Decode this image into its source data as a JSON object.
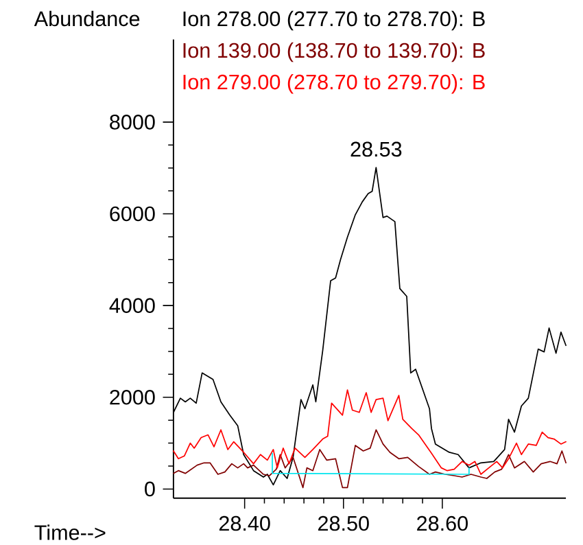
{
  "chart_data": {
    "type": "line",
    "xlabel": "Time-->",
    "ylabel": "Abundance",
    "xlim": [
      28.328,
      28.725
    ],
    "ylim": [
      -200,
      9800
    ],
    "xticks": [
      {
        "value": 28.4,
        "label": "28.40"
      },
      {
        "value": 28.5,
        "label": "28.50"
      },
      {
        "value": 28.6,
        "label": "28.60"
      }
    ],
    "yticks": [
      0,
      2000,
      4000,
      6000,
      8000
    ],
    "legend": "top",
    "grid": false,
    "marker": "none",
    "line_style": "solid",
    "annotations": [
      {
        "text": "28.53",
        "x": 28.533,
        "y": 7010
      }
    ],
    "series": [
      {
        "name": "Ion 278.00 (277.70 to 278.70): B",
        "color": "#000000",
        "x": [
          28.328,
          28.335,
          28.34,
          28.345,
          28.351,
          28.357,
          28.368,
          28.376,
          28.385,
          28.393,
          28.399,
          28.409,
          28.419,
          28.423,
          28.429,
          28.436,
          28.443,
          28.449,
          28.457,
          28.461,
          28.469,
          28.472,
          28.479,
          28.487,
          28.492,
          28.497,
          28.504,
          28.512,
          28.519,
          28.525,
          28.529,
          28.533,
          28.54,
          28.544,
          28.552,
          28.557,
          28.564,
          28.568,
          28.573,
          28.587,
          28.589,
          28.593,
          28.607,
          28.616,
          28.627,
          28.639,
          28.652,
          28.663,
          28.667,
          28.673,
          28.68,
          28.687,
          28.697,
          28.703,
          28.708,
          28.715,
          28.72,
          28.725
        ],
        "values": [
          1670,
          1980,
          1900,
          1980,
          1870,
          2530,
          2390,
          1900,
          1610,
          1380,
          750,
          400,
          260,
          320,
          90,
          400,
          230,
          690,
          1950,
          1750,
          2270,
          1900,
          3020,
          4540,
          4600,
          5000,
          5490,
          5980,
          6260,
          6440,
          6490,
          7010,
          5920,
          5950,
          5830,
          4370,
          4200,
          2530,
          2610,
          1750,
          1320,
          980,
          800,
          750,
          460,
          570,
          600,
          860,
          1520,
          1240,
          1810,
          1980,
          3050,
          2990,
          3510,
          2960,
          3420,
          3130
        ]
      },
      {
        "name": "Ion 139.00 (138.70 to 139.70): B",
        "color": "#800000",
        "x": [
          28.328,
          28.333,
          28.34,
          28.352,
          28.359,
          28.365,
          28.373,
          28.38,
          28.387,
          28.393,
          28.399,
          28.403,
          28.409,
          28.419,
          28.425,
          28.432,
          28.436,
          28.441,
          28.449,
          28.459,
          28.463,
          28.469,
          28.476,
          28.483,
          28.492,
          28.499,
          28.504,
          28.512,
          28.52,
          28.527,
          28.533,
          28.54,
          28.547,
          28.556,
          28.565,
          28.576,
          28.587,
          28.593,
          28.603,
          28.612,
          28.62,
          28.629,
          28.639,
          28.645,
          28.653,
          28.66,
          28.667,
          28.673,
          28.683,
          28.692,
          28.7,
          28.709,
          28.716,
          28.721,
          28.725
        ],
        "values": [
          340,
          400,
          340,
          520,
          570,
          570,
          320,
          370,
          550,
          460,
          550,
          460,
          520,
          320,
          290,
          430,
          750,
          460,
          690,
          30,
          460,
          400,
          860,
          630,
          660,
          30,
          30,
          950,
          830,
          890,
          1290,
          980,
          800,
          660,
          690,
          490,
          320,
          370,
          320,
          290,
          260,
          320,
          260,
          230,
          370,
          430,
          750,
          460,
          600,
          370,
          550,
          600,
          550,
          830,
          570
        ]
      },
      {
        "name": "Ion 279.00 (278.70 to 279.70): B",
        "color": "#ff0000",
        "x": [
          28.328,
          28.333,
          28.339,
          28.345,
          28.349,
          28.356,
          28.363,
          28.369,
          28.376,
          28.383,
          28.389,
          28.399,
          28.409,
          28.416,
          28.423,
          28.429,
          28.433,
          28.439,
          28.445,
          28.451,
          28.461,
          28.469,
          28.479,
          28.484,
          28.488,
          28.499,
          28.504,
          28.509,
          28.516,
          28.523,
          28.528,
          28.533,
          28.54,
          28.545,
          28.556,
          28.56,
          28.569,
          28.576,
          28.589,
          28.599,
          28.605,
          28.612,
          28.62,
          28.627,
          28.633,
          28.639,
          28.647,
          28.655,
          28.661,
          28.667,
          28.675,
          28.68,
          28.687,
          28.695,
          28.701,
          28.707,
          28.713,
          28.72,
          28.725
        ],
        "values": [
          830,
          660,
          720,
          1000,
          890,
          1120,
          1180,
          920,
          1290,
          860,
          1030,
          800,
          550,
          750,
          630,
          860,
          460,
          890,
          550,
          890,
          690,
          860,
          1090,
          1150,
          1870,
          1610,
          2160,
          1720,
          1670,
          2100,
          1670,
          1950,
          1980,
          1490,
          2040,
          1520,
          1320,
          1180,
          780,
          460,
          400,
          430,
          600,
          520,
          600,
          320,
          460,
          600,
          460,
          660,
          1000,
          750,
          980,
          950,
          1240,
          1120,
          1090,
          980,
          1030
        ]
      },
      {
        "color": "#00e5ee",
        "x": [
          28.428,
          28.428,
          28.627,
          28.627
        ],
        "values": [
          780,
          340,
          320,
          460
        ]
      }
    ]
  }
}
